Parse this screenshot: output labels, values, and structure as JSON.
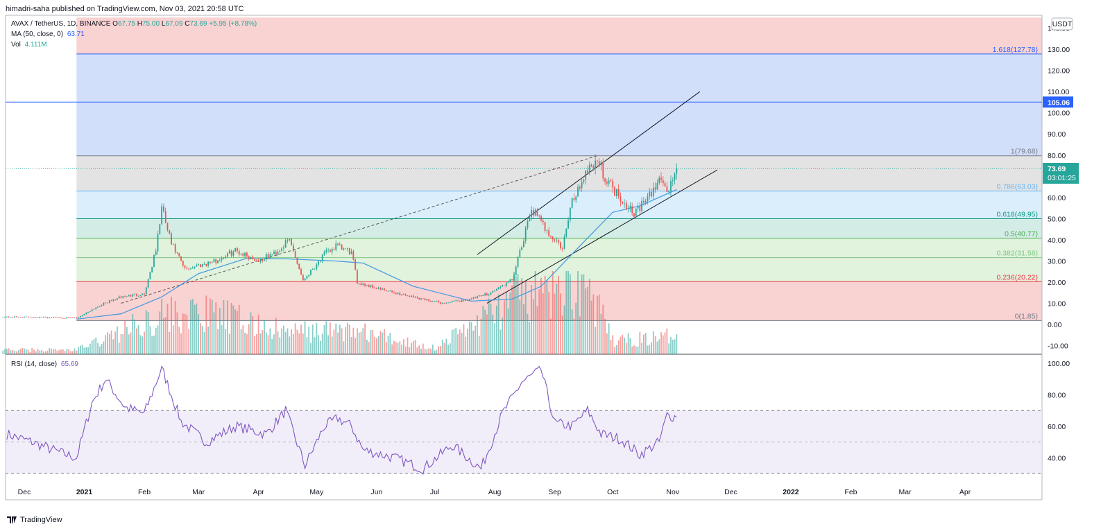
{
  "header": {
    "published": "himadri-saha published on TradingView.com, Nov 03, 2021 20:58 UTC"
  },
  "legend": {
    "symbol": "AVAX / TetherUS, 1D, BINANCE",
    "o_label": "O",
    "o_value": "67.75",
    "h_label": "H",
    "h_value": "75.00",
    "l_label": "L",
    "l_value": "67.09",
    "c_label": "C",
    "c_value": "73.69",
    "change": "+5.95 (+8.78%)",
    "ma_label": "MA (50, close, 0)",
    "ma_value": "63.71",
    "vol_label": "Vol",
    "vol_value": "4.111M",
    "rsi_label": "RSI (14, close)",
    "rsi_value": "65.69"
  },
  "currency": "USDT",
  "footer": {
    "brand": "TradingView"
  },
  "colors": {
    "up": "#26a69a",
    "down": "#ef5350",
    "ma": "#4a9de0",
    "rsi": "#7e57c2",
    "fib_red": "#f9d2d2",
    "fib_blue": "#d2dffb",
    "fib_gray": "#e3e3e3",
    "fib_lightblue": "#dbeefb",
    "fib_teal": "#d3ece6",
    "fib_green": "#e1f2dd"
  },
  "chart_data": [
    {
      "type": "candlestick",
      "title": "AVAX / TetherUS, 1D, BINANCE",
      "ylim": [
        -15,
        145
      ],
      "y_ticks": [
        -10,
        0,
        10,
        20,
        30,
        40,
        50,
        60,
        70,
        80,
        90,
        100,
        110,
        120,
        130,
        140
      ],
      "y_tick_labels": [
        "-10.00",
        "0.00",
        "10.00",
        "20.00",
        "30.00",
        "40.00",
        "50.00",
        "60.00",
        "70.00",
        "80.00",
        "90.00",
        "100.00",
        "110.00",
        "120.00",
        "130.00",
        "140.00"
      ],
      "x_tick_labels": [
        "Dec",
        "2021",
        "Feb",
        "Mar",
        "Apr",
        "May",
        "Jun",
        "Jul",
        "Aug",
        "Sep",
        "Oct",
        "Nov",
        "Dec",
        "2022",
        "Feb",
        "Mar",
        "Apr"
      ],
      "price_series": {
        "name": "AVAX close (approx.)",
        "x": [
          "2020-11-26",
          "2020-12-15",
          "2020-12-28",
          "2021-01-10",
          "2021-01-20",
          "2021-02-01",
          "2021-02-07",
          "2021-02-10",
          "2021-02-15",
          "2021-02-22",
          "2021-03-01",
          "2021-03-10",
          "2021-03-20",
          "2021-04-01",
          "2021-04-10",
          "2021-04-17",
          "2021-04-24",
          "2021-05-05",
          "2021-05-11",
          "2021-05-19",
          "2021-05-22",
          "2021-06-05",
          "2021-06-20",
          "2021-07-05",
          "2021-07-20",
          "2021-07-30",
          "2021-08-10",
          "2021-08-16",
          "2021-08-20",
          "2021-08-25",
          "2021-09-01",
          "2021-09-05",
          "2021-09-10",
          "2021-09-18",
          "2021-09-23",
          "2021-09-28",
          "2021-10-05",
          "2021-10-12",
          "2021-10-20",
          "2021-10-26",
          "2021-10-29",
          "2021-11-03"
        ],
        "y": [
          3.5,
          3.3,
          3.0,
          9.5,
          13.0,
          14.5,
          35.0,
          55.0,
          38.0,
          26.0,
          28.0,
          30.0,
          35.0,
          30.0,
          34.0,
          40.0,
          21.0,
          33.0,
          37.0,
          34.0,
          20.0,
          16.0,
          13.0,
          10.0,
          12.0,
          15.0,
          21.0,
          40.0,
          55.0,
          48.0,
          40.0,
          36.0,
          58.0,
          74.0,
          78.0,
          68.0,
          60.0,
          53.0,
          60.0,
          70.0,
          62.0,
          73.69
        ]
      },
      "ma50": {
        "name": "MA (50, close, 0)",
        "last": 63.71,
        "x": [
          "2020-12-28",
          "2021-01-20",
          "2021-02-10",
          "2021-03-01",
          "2021-03-25",
          "2021-04-15",
          "2021-05-10",
          "2021-05-25",
          "2021-06-20",
          "2021-07-20",
          "2021-08-10",
          "2021-08-25",
          "2021-09-15",
          "2021-10-01",
          "2021-10-15",
          "2021-11-03"
        ],
        "y": [
          2.5,
          5.0,
          13.0,
          24.0,
          31.0,
          31.0,
          30.0,
          29.0,
          18.0,
          11.0,
          12.0,
          18.0,
          38.0,
          53.0,
          56.0,
          63.71
        ]
      },
      "fibonacci": {
        "levels": [
          {
            "ratio": "1.618",
            "price": 127.78,
            "label": "1.618(127.78)"
          },
          {
            "ratio": "1",
            "price": 79.68,
            "label": "1(79.68)"
          },
          {
            "ratio": "0.786",
            "price": 63.03,
            "label": "0.786(63.03)"
          },
          {
            "ratio": "0.618",
            "price": 49.95,
            "label": "0.618(49.95)"
          },
          {
            "ratio": "0.5",
            "price": 40.77,
            "label": "0.5(40.77)"
          },
          {
            "ratio": "0.382",
            "price": 31.58,
            "label": "0.382(31.58)"
          },
          {
            "ratio": "0.236",
            "price": 20.22,
            "label": "0.236(20.22)"
          },
          {
            "ratio": "0",
            "price": 1.85,
            "label": "0(1.85)"
          }
        ]
      },
      "horizontal_line": {
        "price": 105.06,
        "label": "105.06"
      },
      "last_price": {
        "price": 73.69,
        "label": "73.69",
        "countdown": "03:01:25"
      },
      "channel": {
        "upper": {
          "x": [
            "2021-07-23",
            "2021-11-15"
          ],
          "y": [
            33.0,
            110.0
          ]
        },
        "lower": {
          "x": [
            "2021-07-28",
            "2021-11-24"
          ],
          "y": [
            10.0,
            73.0
          ]
        }
      },
      "dashed_trend": {
        "x": [
          "2021-01-20",
          "2021-09-23"
        ],
        "y": [
          10.0,
          79.7
        ]
      },
      "volume": {
        "name": "Vol",
        "last": "4.111M",
        "x": [
          "2020-12-28",
          "2021-02-10",
          "2021-03-10",
          "2021-04-15",
          "2021-05-19",
          "2021-07-01",
          "2021-08-16",
          "2021-08-25",
          "2021-09-10",
          "2021-09-18",
          "2021-10-01",
          "2021-11-03"
        ],
        "values_millions": [
          1.0,
          9.0,
          9.0,
          5.0,
          5.5,
          1.5,
          14.0,
          13.0,
          16.0,
          15.0,
          3.0,
          4.111
        ]
      }
    },
    {
      "type": "line",
      "title": "RSI (14, close)",
      "ylim": [
        25,
        105
      ],
      "y_ticks": [
        40,
        60,
        80,
        100
      ],
      "y_tick_labels": [
        "40.00",
        "60.00",
        "80.00",
        "100.00"
      ],
      "bands": {
        "upper": 70,
        "middle": 50,
        "lower": 30
      },
      "series": [
        {
          "name": "RSI (14, close)",
          "last": 65.69,
          "x": [
            "2020-11-22",
            "2020-12-05",
            "2020-12-20",
            "2020-12-28",
            "2021-01-05",
            "2021-01-12",
            "2021-01-22",
            "2021-02-01",
            "2021-02-10",
            "2021-02-20",
            "2021-03-05",
            "2021-03-20",
            "2021-04-05",
            "2021-04-15",
            "2021-04-25",
            "2021-05-05",
            "2021-05-12",
            "2021-05-19",
            "2021-05-25",
            "2021-06-10",
            "2021-06-25",
            "2021-07-10",
            "2021-07-25",
            "2021-08-05",
            "2021-08-15",
            "2021-08-25",
            "2021-09-01",
            "2021-09-10",
            "2021-09-18",
            "2021-09-25",
            "2021-10-05",
            "2021-10-15",
            "2021-10-25",
            "2021-10-29",
            "2021-11-03"
          ],
          "y": [
            55,
            50,
            43,
            40,
            75,
            90,
            72,
            68,
            97,
            63,
            50,
            60,
            55,
            70,
            35,
            60,
            65,
            60,
            45,
            40,
            33,
            48,
            33,
            68,
            88,
            96,
            62,
            60,
            70,
            55,
            52,
            42,
            50,
            67,
            65.69
          ]
        }
      ]
    }
  ]
}
